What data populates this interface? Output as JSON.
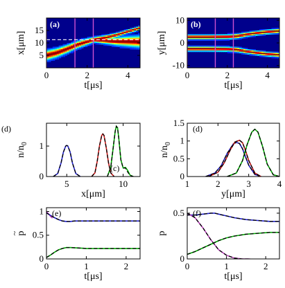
{
  "figure": {
    "colors": {
      "blue": "#1f1fd0",
      "red": "#d01818",
      "green": "#00b000",
      "magenta": "#c040c0",
      "black": "#000000",
      "heatmap_background": "#00008c",
      "marker_line": "#d050d0",
      "dashed_white": "#ffffff"
    }
  },
  "chart_data": [
    {
      "id": "a",
      "type": "heatmap",
      "panel_label": "(a)",
      "xlabel": "t[μs]",
      "ylabel": "x[μm]",
      "xlim": [
        0,
        4.6
      ],
      "ylim": [
        0,
        20
      ],
      "xticks": [
        0,
        2,
        4
      ],
      "yticks": [
        5,
        10,
        15
      ],
      "marker_lines_x": [
        0,
        1.4,
        2.3
      ],
      "dashed_line_y": 11.3,
      "ridges": [
        {
          "t": [
            0,
            0.5,
            1.0,
            1.5,
            2.0,
            2.3,
            3.0,
            3.5,
            4.0,
            4.6
          ],
          "center": [
            5.0,
            6.0,
            7.5,
            9.2,
            10.5,
            11.2,
            12.3,
            13.3,
            14.6,
            16.0
          ],
          "sigma": [
            1.1,
            1.0,
            0.9,
            0.8,
            0.7,
            0.6,
            0.5,
            0.45,
            0.4,
            0.4
          ]
        },
        {
          "t": [
            2.3,
            3.0,
            3.5,
            4.0,
            4.6
          ],
          "center": [
            11.2,
            10.8,
            10.6,
            10.6,
            10.5
          ],
          "sigma": [
            0.5,
            0.7,
            0.9,
            1.1,
            1.3
          ]
        }
      ]
    },
    {
      "id": "b",
      "type": "heatmap",
      "panel_label": "(b)",
      "xlabel": "t[μs]",
      "ylabel": "y[μm]",
      "xlim": [
        0,
        4.6
      ],
      "ylim": [
        -11,
        11
      ],
      "xticks": [
        0,
        2,
        4
      ],
      "yticks": [
        -10,
        0,
        10
      ],
      "marker_lines_x": [
        0,
        1.4,
        2.3
      ],
      "ridges": [
        {
          "t": [
            0,
            1.0,
            2.0,
            2.5,
            3.0,
            3.5,
            4.0,
            4.6
          ],
          "center": [
            2.6,
            2.6,
            2.7,
            3.0,
            3.8,
            4.4,
            4.9,
            5.3
          ],
          "sigma": [
            0.55,
            0.55,
            0.55,
            0.55,
            0.5,
            0.5,
            0.5,
            0.5
          ]
        },
        {
          "t": [
            0,
            1.0,
            2.0,
            2.5,
            3.0,
            3.5,
            4.0,
            4.6
          ],
          "center": [
            -2.6,
            -2.6,
            -2.7,
            -3.0,
            -3.8,
            -4.4,
            -4.9,
            -5.3
          ],
          "sigma": [
            0.55,
            0.55,
            0.55,
            0.55,
            0.5,
            0.5,
            0.5,
            0.5
          ]
        }
      ]
    },
    {
      "id": "c",
      "type": "line",
      "panel_label_left": "(d)",
      "panel_label_inner": "(c)",
      "xlabel": "x[μm]",
      "ylabel": "n/n",
      "ylabel_subscript": "0",
      "xlim": [
        3.2,
        11.5
      ],
      "ylim": [
        0,
        1.75
      ],
      "xticks": [
        5,
        10
      ],
      "yticks": [
        0,
        1
      ],
      "series": [
        {
          "color": "blue",
          "dash": false,
          "x": [
            3.8,
            4.2,
            4.5,
            4.7,
            4.9,
            5.0,
            5.1,
            5.3,
            5.5,
            5.8,
            6.2
          ],
          "y": [
            0.0,
            0.1,
            0.45,
            0.8,
            1.0,
            1.02,
            1.0,
            0.8,
            0.45,
            0.1,
            0.0
          ]
        },
        {
          "color": "black",
          "dash": true,
          "x": [
            3.8,
            4.2,
            4.5,
            4.7,
            4.9,
            5.0,
            5.1,
            5.3,
            5.5,
            5.8,
            6.2
          ],
          "y": [
            0.0,
            0.1,
            0.45,
            0.8,
            1.0,
            1.02,
            1.0,
            0.8,
            0.45,
            0.1,
            0.0
          ]
        },
        {
          "color": "red",
          "dash": false,
          "x": [
            7.2,
            7.5,
            7.7,
            7.9,
            8.1,
            8.2,
            8.3,
            8.5,
            8.7,
            8.9,
            9.2
          ],
          "y": [
            0.0,
            0.12,
            0.5,
            1.0,
            1.35,
            1.4,
            1.35,
            0.95,
            0.45,
            0.12,
            0.0
          ]
        },
        {
          "color": "black",
          "dash": true,
          "x": [
            7.2,
            7.5,
            7.7,
            7.9,
            8.1,
            8.2,
            8.3,
            8.5,
            8.7,
            8.9,
            9.2
          ],
          "y": [
            0.0,
            0.12,
            0.5,
            1.0,
            1.35,
            1.4,
            1.35,
            0.95,
            0.45,
            0.12,
            0.0
          ]
        },
        {
          "color": "green",
          "dash": false,
          "x": [
            8.6,
            8.9,
            9.1,
            9.3,
            9.4,
            9.5,
            9.6,
            9.8,
            10.0,
            10.2,
            10.4,
            10.6,
            10.9
          ],
          "y": [
            0.0,
            0.3,
            0.9,
            1.5,
            1.65,
            1.6,
            1.3,
            0.55,
            0.28,
            0.3,
            0.2,
            0.05,
            0.0
          ]
        },
        {
          "color": "black",
          "dash": true,
          "x": [
            8.6,
            8.9,
            9.1,
            9.3,
            9.4,
            9.5,
            9.6,
            9.8,
            10.0,
            10.2,
            10.4,
            10.6,
            10.9
          ],
          "y": [
            0.0,
            0.3,
            0.9,
            1.5,
            1.65,
            1.6,
            1.3,
            0.55,
            0.28,
            0.28,
            0.15,
            0.04,
            0.0
          ]
        }
      ]
    },
    {
      "id": "d",
      "type": "line",
      "panel_label": "(d)",
      "xlabel": "y[μm]",
      "ylabel": "n/n",
      "ylabel_subscript": "0",
      "xlim": [
        1,
        4
      ],
      "ylim": [
        0,
        1.5
      ],
      "xticks": [
        1,
        2,
        3,
        4
      ],
      "yticks": [
        0,
        0.5,
        1,
        1.5
      ],
      "ytick_labels": [
        "0",
        "0.5",
        "1",
        "1.5"
      ],
      "series": [
        {
          "color": "blue",
          "dash": false,
          "x": [
            1.6,
            1.9,
            2.1,
            2.3,
            2.5,
            2.6,
            2.7,
            2.8,
            2.9,
            3.0,
            3.2,
            3.4
          ],
          "y": [
            0.0,
            0.1,
            0.3,
            0.65,
            0.92,
            0.96,
            0.93,
            0.78,
            0.55,
            0.32,
            0.06,
            0.0
          ]
        },
        {
          "color": "black",
          "dash": true,
          "x": [
            1.6,
            1.9,
            2.1,
            2.3,
            2.5,
            2.6,
            2.7,
            2.8,
            2.9,
            3.0,
            3.2,
            3.4
          ],
          "y": [
            0.0,
            0.1,
            0.3,
            0.65,
            0.92,
            0.96,
            0.93,
            0.78,
            0.55,
            0.32,
            0.06,
            0.0
          ]
        },
        {
          "color": "red",
          "dash": false,
          "x": [
            1.7,
            2.0,
            2.2,
            2.4,
            2.55,
            2.7,
            2.8,
            2.9,
            3.0,
            3.2,
            3.4
          ],
          "y": [
            0.0,
            0.12,
            0.38,
            0.75,
            0.97,
            1.02,
            0.95,
            0.72,
            0.45,
            0.1,
            0.0
          ]
        },
        {
          "color": "black",
          "dash": true,
          "x": [
            1.7,
            2.0,
            2.2,
            2.4,
            2.55,
            2.7,
            2.8,
            2.9,
            3.0,
            3.2,
            3.4
          ],
          "y": [
            0.0,
            0.12,
            0.38,
            0.75,
            0.97,
            1.02,
            0.95,
            0.72,
            0.45,
            0.1,
            0.0
          ]
        },
        {
          "color": "green",
          "dash": false,
          "x": [
            2.3,
            2.6,
            2.8,
            2.95,
            3.1,
            3.2,
            3.3,
            3.45,
            3.6,
            3.8,
            4.0
          ],
          "y": [
            0.0,
            0.1,
            0.45,
            0.9,
            1.25,
            1.33,
            1.25,
            0.85,
            0.35,
            0.05,
            0.0
          ]
        },
        {
          "color": "black",
          "dash": true,
          "x": [
            2.3,
            2.6,
            2.8,
            2.95,
            3.1,
            3.2,
            3.3,
            3.45,
            3.6,
            3.8,
            4.0
          ],
          "y": [
            0.0,
            0.1,
            0.45,
            0.9,
            1.25,
            1.33,
            1.25,
            0.85,
            0.35,
            0.05,
            0.0
          ]
        }
      ]
    },
    {
      "id": "e",
      "type": "line",
      "panel_label": "(e)",
      "xlabel": "t[μs]",
      "ylabel": "p",
      "ylabel_accent": "~",
      "xlim": [
        0,
        2.35
      ],
      "ylim": [
        0,
        1.08
      ],
      "xticks": [
        0,
        1,
        2
      ],
      "yticks": [
        0,
        0.5,
        1
      ],
      "ytick_labels": [
        "0",
        "0.5",
        "1"
      ],
      "series": [
        {
          "color": "magenta",
          "dash": false,
          "x": [
            0,
            0.05,
            0.1,
            0.15
          ],
          "y": [
            1.0,
            0.95,
            0.9,
            0.86
          ]
        },
        {
          "color": "blue",
          "dash": false,
          "x": [
            0,
            0.1,
            0.2,
            0.3,
            0.4,
            0.5,
            0.6,
            0.7,
            0.8,
            1.0,
            1.5,
            2.0,
            2.35
          ],
          "y": [
            0.97,
            0.92,
            0.87,
            0.83,
            0.8,
            0.79,
            0.79,
            0.8,
            0.8,
            0.8,
            0.8,
            0.8,
            0.8
          ]
        },
        {
          "color": "black",
          "dash": true,
          "x": [
            0,
            0.1,
            0.2,
            0.3,
            0.4,
            0.5,
            0.6,
            0.7,
            0.8,
            1.0,
            1.5,
            2.0,
            2.35
          ],
          "y": [
            0.97,
            0.92,
            0.87,
            0.83,
            0.8,
            0.79,
            0.79,
            0.8,
            0.8,
            0.8,
            0.8,
            0.8,
            0.8
          ]
        },
        {
          "color": "green",
          "dash": false,
          "x": [
            0,
            0.1,
            0.2,
            0.3,
            0.4,
            0.5,
            0.6,
            0.8,
            1.0,
            1.5,
            2.0,
            2.35
          ],
          "y": [
            0.03,
            0.08,
            0.14,
            0.19,
            0.22,
            0.24,
            0.24,
            0.23,
            0.22,
            0.22,
            0.22,
            0.22
          ]
        },
        {
          "color": "black",
          "dash": true,
          "x": [
            0,
            0.1,
            0.2,
            0.3,
            0.4,
            0.5,
            0.6,
            0.8,
            1.0,
            1.5,
            2.0,
            2.35
          ],
          "y": [
            0.03,
            0.08,
            0.14,
            0.19,
            0.22,
            0.24,
            0.24,
            0.23,
            0.22,
            0.22,
            0.22,
            0.22
          ]
        }
      ]
    },
    {
      "id": "f",
      "type": "line",
      "panel_label": "(f)",
      "xlabel": "t[μs]",
      "ylabel": "p",
      "xlim": [
        0,
        2.35
      ],
      "ylim": [
        0,
        0.56
      ],
      "xticks": [
        0,
        1,
        2
      ],
      "yticks": [
        0,
        0.5
      ],
      "ytick_labels": [
        "0",
        "0.5"
      ],
      "series": [
        {
          "color": "blue",
          "dash": false,
          "x": [
            0,
            0.2,
            0.4,
            0.6,
            0.7,
            0.8,
            1.0,
            1.2,
            1.5,
            1.8,
            2.1,
            2.35
          ],
          "y": [
            0.48,
            0.48,
            0.49,
            0.5,
            0.5,
            0.49,
            0.47,
            0.45,
            0.43,
            0.42,
            0.41,
            0.41
          ]
        },
        {
          "color": "black",
          "dash": true,
          "x": [
            0,
            0.2,
            0.4,
            0.6,
            0.7,
            0.8,
            1.0,
            1.2,
            1.5,
            1.8,
            2.1,
            2.35
          ],
          "y": [
            0.48,
            0.48,
            0.49,
            0.5,
            0.5,
            0.49,
            0.47,
            0.45,
            0.43,
            0.42,
            0.41,
            0.41
          ]
        },
        {
          "color": "magenta",
          "dash": false,
          "x": [
            0,
            0.2,
            0.4,
            0.6,
            0.8,
            1.0,
            1.2,
            1.4,
            1.6
          ],
          "y": [
            0.5,
            0.45,
            0.34,
            0.21,
            0.1,
            0.04,
            0.01,
            0.0,
            0.0
          ]
        },
        {
          "color": "black",
          "dash": true,
          "x": [
            0,
            0.2,
            0.4,
            0.6,
            0.8,
            1.0,
            1.2,
            1.4,
            1.6
          ],
          "y": [
            0.5,
            0.45,
            0.34,
            0.21,
            0.1,
            0.04,
            0.01,
            0.0,
            0.0
          ]
        },
        {
          "color": "green",
          "dash": false,
          "x": [
            0,
            0.2,
            0.4,
            0.6,
            0.8,
            1.0,
            1.2,
            1.5,
            1.8,
            2.1,
            2.35
          ],
          "y": [
            0.05,
            0.08,
            0.12,
            0.16,
            0.2,
            0.23,
            0.25,
            0.27,
            0.28,
            0.29,
            0.29
          ]
        },
        {
          "color": "black",
          "dash": true,
          "x": [
            0,
            0.2,
            0.4,
            0.6,
            0.8,
            1.0,
            1.2,
            1.5,
            1.8,
            2.1,
            2.35
          ],
          "y": [
            0.05,
            0.08,
            0.12,
            0.16,
            0.2,
            0.23,
            0.25,
            0.27,
            0.28,
            0.29,
            0.29
          ]
        }
      ]
    }
  ]
}
